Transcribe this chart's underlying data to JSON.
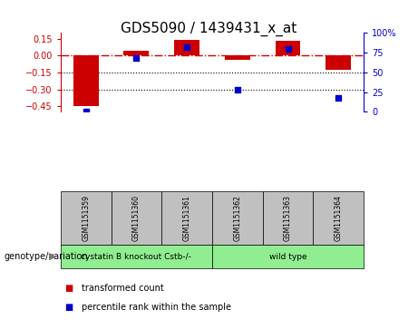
{
  "title": "GDS5090 / 1439431_x_at",
  "samples": [
    "GSM1151359",
    "GSM1151360",
    "GSM1151361",
    "GSM1151362",
    "GSM1151363",
    "GSM1151364"
  ],
  "transformed_count": [
    -0.45,
    0.04,
    0.14,
    -0.04,
    0.13,
    -0.13
  ],
  "percentile_rank": [
    0.5,
    68.0,
    82.0,
    28.0,
    80.0,
    18.0
  ],
  "group_labels": [
    "cystatin B knockout Cstb-/-",
    "wild type"
  ],
  "group_colors": [
    "#90EE90",
    "#90EE90"
  ],
  "group_sample_counts": [
    3,
    3
  ],
  "ylim_left": [
    -0.5,
    0.2
  ],
  "ylim_right": [
    0,
    100
  ],
  "yticks_left": [
    -0.45,
    -0.3,
    -0.15,
    0.0,
    0.15
  ],
  "yticks_right": [
    0,
    25,
    50,
    75,
    100
  ],
  "bar_color": "#CC0000",
  "scatter_color": "#0000CC",
  "hline_y": 0.0,
  "dotted_lines": [
    -0.15,
    -0.3
  ],
  "legend_red": "transformed count",
  "legend_blue": "percentile rank within the sample",
  "genotype_label": "genotype/variation",
  "sample_box_color": "#C0C0C0",
  "title_fontsize": 11,
  "tick_fontsize": 7,
  "sample_fontsize": 5.5,
  "legend_fontsize": 7,
  "geno_fontsize": 6.5
}
